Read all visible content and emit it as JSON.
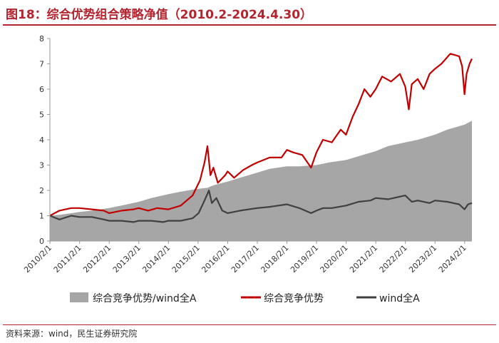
{
  "header": {
    "title": "图18：综合优势组合策略净值（2010.2-2024.4.30）"
  },
  "footer": {
    "source": "资料来源：wind，民生证券研究院"
  },
  "colors": {
    "ratio_fill": "#a6a6a6",
    "strategy": "#c00000",
    "index": "#404040",
    "title": "#b3242e"
  },
  "chart_data": {
    "type": "line",
    "title": "图18：综合优势组合策略净值（2010.2-2024.4.30）",
    "ylim": [
      0,
      8
    ],
    "yticks": [
      "0",
      "1",
      "2",
      "3",
      "4",
      "5",
      "6",
      "7",
      "8"
    ],
    "xlim": [
      2010.08,
      2024.33
    ],
    "xticks": [
      "2010/2/1",
      "2011/2/1",
      "2012/2/1",
      "2013/2/1",
      "2014/2/1",
      "2015/2/1",
      "2016/2/1",
      "2017/2/1",
      "2018/2/1",
      "2019/2/1",
      "2020/2/1",
      "2021/2/1",
      "2022/2/1",
      "2023/2/1",
      "2024/2/1"
    ],
    "grid": false,
    "legend_position": "bottom",
    "series": [
      {
        "name": "综合竞争优势/wind全A",
        "kind": "area",
        "x": [
          2010.08,
          2010.5,
          2011.08,
          2011.5,
          2012.08,
          2012.5,
          2013.08,
          2013.5,
          2014.08,
          2014.5,
          2015.0,
          2015.4,
          2015.6,
          2016.08,
          2016.5,
          2017.08,
          2017.5,
          2018.08,
          2018.5,
          2019.08,
          2019.5,
          2020.08,
          2020.5,
          2021.08,
          2021.5,
          2022.08,
          2022.5,
          2023.08,
          2023.5,
          2024.08,
          2024.33
        ],
        "values": [
          1.0,
          1.05,
          1.15,
          1.2,
          1.3,
          1.4,
          1.55,
          1.7,
          1.85,
          1.95,
          2.05,
          2.1,
          2.2,
          2.35,
          2.5,
          2.7,
          2.85,
          2.95,
          2.95,
          3.0,
          3.1,
          3.2,
          3.35,
          3.55,
          3.75,
          3.9,
          4.0,
          4.2,
          4.4,
          4.6,
          4.75
        ]
      },
      {
        "name": "综合竞争优势",
        "kind": "line",
        "x": [
          2010.08,
          2010.4,
          2010.8,
          2011.08,
          2011.5,
          2011.9,
          2012.08,
          2012.5,
          2012.9,
          2013.08,
          2013.4,
          2013.7,
          2014.08,
          2014.5,
          2014.9,
          2015.15,
          2015.3,
          2015.4,
          2015.5,
          2015.6,
          2015.75,
          2016.0,
          2016.08,
          2016.3,
          2016.6,
          2016.9,
          2017.08,
          2017.5,
          2017.9,
          2018.08,
          2018.3,
          2018.6,
          2018.9,
          2019.08,
          2019.3,
          2019.6,
          2019.9,
          2020.08,
          2020.3,
          2020.5,
          2020.7,
          2020.9,
          2021.08,
          2021.3,
          2021.6,
          2021.9,
          2022.08,
          2022.2,
          2022.3,
          2022.5,
          2022.7,
          2022.9,
          2023.08,
          2023.3,
          2023.6,
          2023.9,
          2024.0,
          2024.08,
          2024.15,
          2024.25,
          2024.33
        ],
        "values": [
          1.0,
          1.2,
          1.3,
          1.3,
          1.25,
          1.2,
          1.1,
          1.2,
          1.25,
          1.3,
          1.2,
          1.3,
          1.25,
          1.4,
          1.8,
          2.4,
          3.1,
          3.75,
          2.6,
          2.9,
          2.3,
          2.6,
          2.75,
          2.5,
          2.8,
          3.0,
          3.1,
          3.3,
          3.3,
          3.6,
          3.5,
          3.4,
          2.9,
          3.5,
          4.0,
          3.9,
          4.4,
          4.2,
          4.9,
          5.4,
          6.0,
          5.7,
          6.0,
          6.5,
          6.3,
          6.6,
          6.1,
          5.2,
          6.2,
          6.4,
          6.0,
          6.6,
          6.8,
          7.0,
          7.4,
          7.3,
          6.9,
          5.8,
          6.6,
          7.0,
          7.2
        ]
      },
      {
        "name": "wind全A",
        "kind": "line",
        "x": [
          2010.08,
          2010.4,
          2010.8,
          2011.08,
          2011.5,
          2011.9,
          2012.08,
          2012.5,
          2012.9,
          2013.08,
          2013.5,
          2013.9,
          2014.08,
          2014.5,
          2014.9,
          2015.1,
          2015.3,
          2015.45,
          2015.55,
          2015.7,
          2015.9,
          2016.08,
          2016.5,
          2017.08,
          2017.5,
          2018.08,
          2018.5,
          2018.9,
          2019.08,
          2019.3,
          2019.6,
          2020.08,
          2020.5,
          2020.9,
          2021.08,
          2021.5,
          2022.08,
          2022.3,
          2022.5,
          2022.9,
          2023.08,
          2023.5,
          2023.9,
          2024.08,
          2024.2,
          2024.33
        ],
        "values": [
          1.0,
          0.85,
          1.0,
          0.95,
          0.95,
          0.85,
          0.8,
          0.8,
          0.75,
          0.8,
          0.8,
          0.75,
          0.8,
          0.8,
          0.9,
          1.1,
          1.6,
          2.0,
          1.5,
          1.7,
          1.2,
          1.1,
          1.2,
          1.3,
          1.35,
          1.45,
          1.3,
          1.1,
          1.2,
          1.3,
          1.3,
          1.4,
          1.55,
          1.6,
          1.7,
          1.65,
          1.8,
          1.55,
          1.6,
          1.5,
          1.6,
          1.55,
          1.45,
          1.25,
          1.45,
          1.5
        ]
      }
    ]
  }
}
